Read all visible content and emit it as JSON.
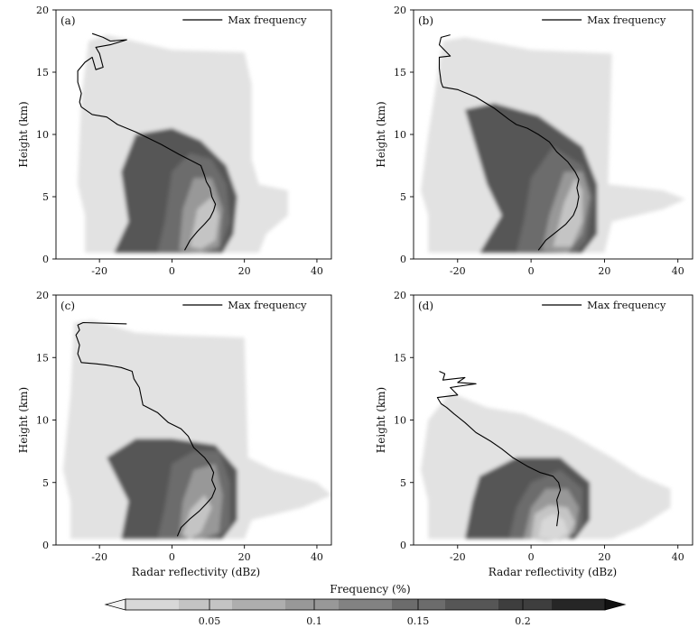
{
  "figure": {
    "xlabel": "Radar reflectivity (dBz)",
    "ylabel": "Height (km)",
    "legend_label": "Max frequency",
    "colorbar_title": "Frequency (%)",
    "colorbar_ticks": [
      "0.05",
      "0.1",
      "0.15",
      "0.2"
    ],
    "colorbar_colors": [
      "#d8d8d8",
      "#c4c4c4",
      "#aeaeae",
      "#989898",
      "#828282",
      "#6c6c6c",
      "#565656",
      "#3e3e3e",
      "#262626"
    ]
  },
  "chart_data": [
    {
      "type": "heatmap",
      "panel_label": "(a)",
      "xlim": [
        -32,
        44
      ],
      "ylim": [
        0,
        20
      ],
      "xticks": [
        -20,
        0,
        20,
        40
      ],
      "yticks": [
        0,
        5,
        10,
        15,
        20
      ],
      "xlabel": "",
      "ylabel": "Height (km)",
      "legend": "Max frequency",
      "max_frequency_line": {
        "dbz": [
          3.5,
          5,
          7,
          9,
          10.5,
          11.5,
          12,
          11,
          10.5,
          9.5,
          9,
          8,
          6,
          2,
          -3,
          -10,
          -15,
          -18,
          -22,
          -25,
          -25.5,
          -25,
          -26,
          -26,
          -24,
          -22,
          -21,
          -19,
          -20,
          -21,
          -17,
          -12.5,
          -17,
          -19,
          -22
        ],
        "height": [
          0.7,
          1.5,
          2.2,
          2.8,
          3.3,
          3.9,
          4.4,
          5,
          5.7,
          6.2,
          6.7,
          7.5,
          7.8,
          8.4,
          9.2,
          10.2,
          10.8,
          11.4,
          11.6,
          12.2,
          12.6,
          13.3,
          14.2,
          15.1,
          15.8,
          16.2,
          15.2,
          15.4,
          16.5,
          17,
          17.2,
          17.6,
          17.5,
          17.8,
          18.1
        ]
      }
    },
    {
      "type": "heatmap",
      "panel_label": "(b)",
      "xlim": [
        -32,
        44
      ],
      "ylim": [
        0,
        20
      ],
      "xticks": [
        -20,
        0,
        20,
        40
      ],
      "yticks": [
        0,
        5,
        10,
        15,
        20
      ],
      "xlabel": "",
      "ylabel": "Height (km)",
      "legend": "Max frequency",
      "max_frequency_line": {
        "dbz": [
          2,
          4,
          7,
          9.5,
          11.5,
          12.5,
          13,
          12.5,
          13,
          12,
          10,
          7,
          5,
          2,
          -1,
          -4,
          -6,
          -10,
          -15,
          -20,
          -24,
          -24.5,
          -25,
          -25,
          -22,
          -25,
          -24.5,
          -22
        ],
        "height": [
          0.7,
          1.5,
          2.2,
          2.8,
          3.5,
          4.2,
          5,
          5.7,
          6.4,
          7,
          7.8,
          8.6,
          9.4,
          10,
          10.5,
          10.8,
          11.2,
          12.1,
          13,
          13.6,
          13.8,
          14.2,
          15.3,
          16.2,
          16.3,
          17.2,
          17.8,
          18
        ]
      }
    },
    {
      "type": "heatmap",
      "panel_label": "(c)",
      "xlim": [
        -32,
        44
      ],
      "ylim": [
        0,
        20
      ],
      "xticks": [
        -20,
        0,
        20,
        40
      ],
      "yticks": [
        0,
        5,
        10,
        15,
        20
      ],
      "xlabel": "Radar reflectivity (dBz)",
      "ylabel": "Height (km)",
      "legend": "Max frequency",
      "max_frequency_line": {
        "dbz": [
          1.5,
          2.5,
          5,
          7.5,
          9.5,
          11,
          12,
          11,
          11.5,
          10.5,
          9,
          6,
          4.5,
          2.5,
          -1,
          -4,
          -8,
          -8.5,
          -9,
          -10.5,
          -11,
          -14,
          -18,
          -21,
          -25,
          -26,
          -25.5,
          -26.5,
          -25.5,
          -26,
          -24.5,
          -12.5
        ],
        "height": [
          0.7,
          1.4,
          2.1,
          2.7,
          3.3,
          3.8,
          4.5,
          5.2,
          5.8,
          6.4,
          7,
          7.8,
          8.7,
          9.3,
          9.8,
          10.6,
          11.2,
          11.9,
          12.6,
          13.3,
          13.9,
          14.2,
          14.4,
          14.5,
          14.6,
          15.3,
          16,
          16.8,
          17.2,
          17.6,
          17.8,
          17.7
        ]
      }
    },
    {
      "type": "heatmap",
      "panel_label": "(d)",
      "xlim": [
        -32,
        44
      ],
      "ylim": [
        0,
        20
      ],
      "xticks": [
        -20,
        0,
        20,
        40
      ],
      "yticks": [
        0,
        5,
        10,
        15,
        20
      ],
      "xlabel": "Radar reflectivity (dBz)",
      "ylabel": "Height (km)",
      "legend": "Max frequency",
      "max_frequency_line": {
        "dbz": [
          7,
          7.5,
          7,
          8,
          7.5,
          6,
          2.5,
          -1,
          -5,
          -8,
          -11,
          -15,
          -18,
          -21,
          -23,
          -24.5,
          -25.5,
          -20,
          -22,
          -15,
          -20,
          -18,
          -24,
          -23.5,
          -25
        ],
        "height": [
          1.5,
          2.6,
          3.6,
          4.4,
          5,
          5.5,
          5.8,
          6.3,
          7,
          7.7,
          8.3,
          9,
          9.8,
          10.5,
          11,
          11.3,
          11.8,
          12,
          12.6,
          12.9,
          13,
          13.4,
          13.2,
          13.7,
          13.9
        ]
      }
    }
  ]
}
